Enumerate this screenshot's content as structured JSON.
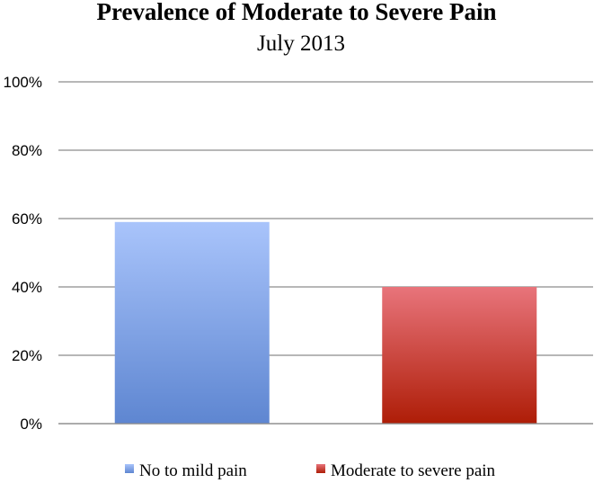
{
  "chart_data": {
    "type": "bar",
    "title": "Prevalence of Moderate to Severe Pain",
    "subtitle": "July 2013",
    "xlabel": "",
    "ylabel": "",
    "ylim": [
      0,
      100
    ],
    "yticks": [
      "0%",
      "20%",
      "40%",
      "60%",
      "80%",
      "100%"
    ],
    "grid": true,
    "legend_position": "bottom",
    "categories": [
      "No to mild pain",
      "Moderate to severe pain"
    ],
    "values": [
      59,
      40
    ],
    "series": [
      {
        "name": "No to mild pain",
        "value": 59,
        "color_top": "#a9c4fb",
        "color_bottom": "#5e86d1"
      },
      {
        "name": "Moderate to severe pain",
        "value": 40,
        "color_top": "#e8747b",
        "color_bottom": "#ae1d07"
      }
    ]
  }
}
